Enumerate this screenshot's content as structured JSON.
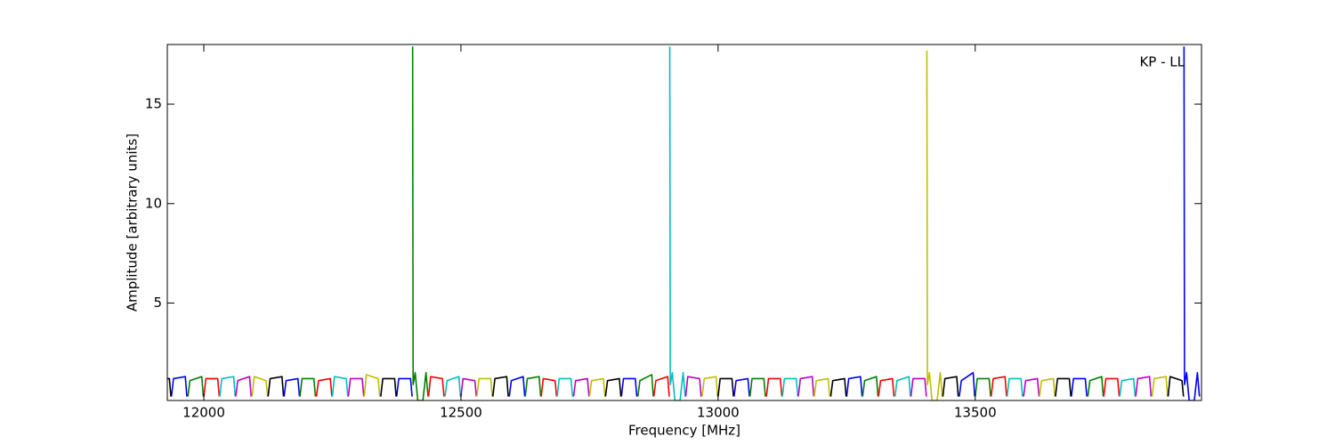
{
  "chart_data": {
    "type": "line",
    "xlabel": "Frequency [MHz]",
    "ylabel": "Amplitude [arbitrary units]",
    "annotation": "KP - LL",
    "xlim": [
      11929,
      13940
    ],
    "ylim": [
      0.1,
      18
    ],
    "xticks": [
      12000,
      12500,
      13000,
      13500
    ],
    "yticks": [
      5,
      10,
      15
    ],
    "series": [
      {
        "color": "#0000ff",
        "x": [
          11937,
          11941,
          11964,
          11967,
          11968,
          12156,
          12160,
          12183,
          12186,
          12187,
          12375,
          12379,
          12402,
          12405,
          12406,
          12594,
          12598,
          12621,
          12624,
          12625,
          12812,
          12816,
          12839,
          12842,
          12843,
          13031,
          13035,
          13058,
          13061,
          13062,
          13250,
          13254,
          13277,
          13280,
          13281,
          13469,
          13473,
          13496,
          13499,
          13500,
          13687,
          13691,
          13714,
          13717,
          13718,
          13906,
          13907,
          13911,
          13916,
          13926,
          13932,
          13936
        ],
        "values": [
          0.3,
          1.2,
          1.3,
          0.3,
          null,
          0.3,
          1.1,
          1.2,
          0.3,
          null,
          0.3,
          1.2,
          1.2,
          0.3,
          null,
          0.3,
          1.1,
          1.3,
          0.3,
          null,
          0.3,
          1.2,
          1.2,
          0.3,
          null,
          0.3,
          1.1,
          1.2,
          0.3,
          null,
          0.3,
          1.2,
          1.3,
          0.3,
          null,
          0.3,
          1.1,
          1.5,
          0.3,
          null,
          0.3,
          1.2,
          1.2,
          0.3,
          null,
          17.9,
          0.9,
          1.5,
          0.1,
          0.1,
          1.5,
          0.3
        ]
      },
      {
        "color": "#008000",
        "x": [
          11969,
          11973,
          11996,
          11999,
          12000,
          12187,
          12191,
          12214,
          12217,
          12218,
          12406,
          12407,
          12411,
          12416,
          12426,
          12432,
          12436,
          12437,
          12625,
          12629,
          12652,
          12655,
          12656,
          12844,
          12848,
          12871,
          12874,
          12875,
          13062,
          13066,
          13089,
          13092,
          13093,
          13281,
          13285,
          13308,
          13311,
          13312,
          13500,
          13504,
          13527,
          13530,
          13531,
          13719,
          13723,
          13746,
          13749
        ],
        "values": [
          0.3,
          1.1,
          1.3,
          0.3,
          null,
          0.3,
          1.2,
          1.2,
          0.3,
          null,
          17.9,
          0.9,
          1.5,
          0.1,
          0.1,
          1.5,
          0.3,
          null,
          0.3,
          1.2,
          1.3,
          0.3,
          null,
          0.3,
          1.1,
          1.4,
          0.3,
          null,
          0.3,
          1.2,
          1.2,
          0.3,
          null,
          0.3,
          1.1,
          1.3,
          0.3,
          null,
          0.3,
          1.2,
          1.2,
          0.3,
          null,
          0.3,
          1.1,
          1.3,
          0.3
        ]
      },
      {
        "color": "#ff0000",
        "x": [
          12000,
          12004,
          12027,
          12030,
          12031,
          12219,
          12223,
          12246,
          12249,
          12250,
          12437,
          12441,
          12464,
          12467,
          12468,
          12656,
          12660,
          12683,
          12686,
          12687,
          12875,
          12879,
          12902,
          12905,
          12906,
          13094,
          13098,
          13121,
          13124,
          13125,
          13312,
          13316,
          13339,
          13342,
          13343,
          13531,
          13535,
          13558,
          13561,
          13562,
          13750,
          13754,
          13777,
          13780
        ],
        "values": [
          0.3,
          1.2,
          1.2,
          0.3,
          null,
          0.3,
          1.1,
          1.2,
          0.3,
          null,
          0.3,
          1.3,
          1.2,
          0.3,
          null,
          0.3,
          1.2,
          1.1,
          0.3,
          null,
          0.3,
          1.1,
          1.3,
          0.3,
          null,
          0.3,
          1.2,
          1.2,
          0.3,
          null,
          0.3,
          1.1,
          1.2,
          0.3,
          null,
          0.3,
          1.2,
          1.3,
          0.3,
          null,
          0.3,
          1.2,
          1.2,
          0.3
        ]
      },
      {
        "color": "#00bfbf",
        "x": [
          12031,
          12035,
          12058,
          12061,
          12062,
          12250,
          12254,
          12277,
          12280,
          12281,
          12469,
          12473,
          12496,
          12499,
          12500,
          12687,
          12691,
          12714,
          12717,
          12718,
          12906,
          12907,
          12911,
          12916,
          12926,
          12932,
          12936,
          12937,
          13125,
          13129,
          13152,
          13155,
          13156,
          13344,
          13348,
          13371,
          13374,
          13375,
          13562,
          13566,
          13589,
          13592,
          13593,
          13781,
          13785,
          13808,
          13811
        ],
        "values": [
          0.3,
          1.2,
          1.3,
          0.3,
          null,
          0.3,
          1.3,
          1.2,
          0.3,
          null,
          0.3,
          1.1,
          1.3,
          0.3,
          null,
          0.3,
          1.2,
          1.2,
          0.3,
          null,
          17.9,
          0.9,
          1.5,
          0.1,
          0.1,
          1.5,
          0.3,
          null,
          0.3,
          1.2,
          1.2,
          0.3,
          null,
          0.3,
          1.1,
          1.3,
          0.3,
          null,
          0.3,
          1.2,
          1.2,
          0.3,
          null,
          0.3,
          1.1,
          1.2,
          0.3
        ]
      },
      {
        "color": "#bf00bf",
        "x": [
          12062,
          12066,
          12089,
          12092,
          12093,
          12281,
          12285,
          12308,
          12311,
          12312,
          12500,
          12504,
          12527,
          12530,
          12531,
          12719,
          12723,
          12746,
          12749,
          12750,
          12937,
          12941,
          12964,
          12967,
          12968,
          13156,
          13160,
          13183,
          13186,
          13187,
          13375,
          13379,
          13402,
          13405,
          13406,
          13594,
          13598,
          13621,
          13624,
          13625,
          13812,
          13816,
          13839,
          13842
        ],
        "values": [
          0.3,
          1.1,
          1.3,
          0.3,
          null,
          0.3,
          1.2,
          1.2,
          0.3,
          null,
          0.3,
          1.2,
          1.1,
          0.3,
          null,
          0.3,
          1.1,
          1.2,
          0.3,
          null,
          0.3,
          1.3,
          1.2,
          0.3,
          null,
          0.3,
          1.2,
          1.3,
          0.3,
          null,
          0.3,
          1.2,
          1.2,
          0.3,
          null,
          0.3,
          1.1,
          1.2,
          0.3,
          null,
          0.3,
          1.2,
          1.3,
          0.3
        ]
      },
      {
        "color": "#bfbf00",
        "x": [
          12094,
          12098,
          12121,
          12124,
          12125,
          12312,
          12316,
          12339,
          12342,
          12343,
          12531,
          12535,
          12558,
          12561,
          12562,
          12750,
          12754,
          12777,
          12780,
          12781,
          12969,
          12973,
          12996,
          12999,
          13000,
          13187,
          13191,
          13214,
          13217,
          13218,
          13406,
          13407,
          13411,
          13416,
          13426,
          13432,
          13436,
          13437,
          13625,
          13629,
          13652,
          13655,
          13656,
          13844,
          13848,
          13871,
          13874
        ],
        "values": [
          0.3,
          1.3,
          1.1,
          0.3,
          null,
          0.3,
          1.4,
          1.2,
          0.3,
          null,
          0.3,
          1.2,
          1.2,
          0.3,
          null,
          0.3,
          1.1,
          1.2,
          0.3,
          null,
          0.3,
          1.2,
          1.3,
          0.3,
          null,
          0.3,
          1.1,
          1.2,
          0.3,
          null,
          17.7,
          0.9,
          1.5,
          0.1,
          0.1,
          1.5,
          0.3,
          null,
          0.3,
          1.1,
          1.2,
          0.3,
          null,
          0.3,
          1.2,
          1.3,
          0.3
        ]
      },
      {
        "color": "#000000",
        "x": [
          11906,
          11910,
          11933,
          11936,
          11937,
          12125,
          12129,
          12152,
          12155,
          12156,
          12344,
          12348,
          12371,
          12374,
          12375,
          12562,
          12566,
          12589,
          12592,
          12593,
          12781,
          12785,
          12808,
          12811,
          12812,
          13000,
          13004,
          13027,
          13030,
          13031,
          13219,
          13223,
          13246,
          13249,
          13250,
          13437,
          13441,
          13464,
          13467,
          13468,
          13656,
          13660,
          13683,
          13686,
          13687,
          13875,
          13879,
          13902,
          13905
        ],
        "values": [
          0.3,
          1.2,
          1.2,
          0.3,
          null,
          0.3,
          1.2,
          1.3,
          0.3,
          null,
          0.3,
          1.2,
          1.2,
          0.3,
          null,
          0.3,
          1.2,
          1.3,
          0.3,
          null,
          0.3,
          1.1,
          1.2,
          0.3,
          null,
          0.3,
          1.2,
          1.2,
          0.3,
          null,
          0.3,
          1.1,
          1.2,
          0.3,
          null,
          0.3,
          1.2,
          1.3,
          0.3,
          null,
          0.3,
          1.2,
          1.2,
          0.3,
          null,
          0.3,
          1.3,
          1.1,
          0.3
        ]
      }
    ]
  }
}
